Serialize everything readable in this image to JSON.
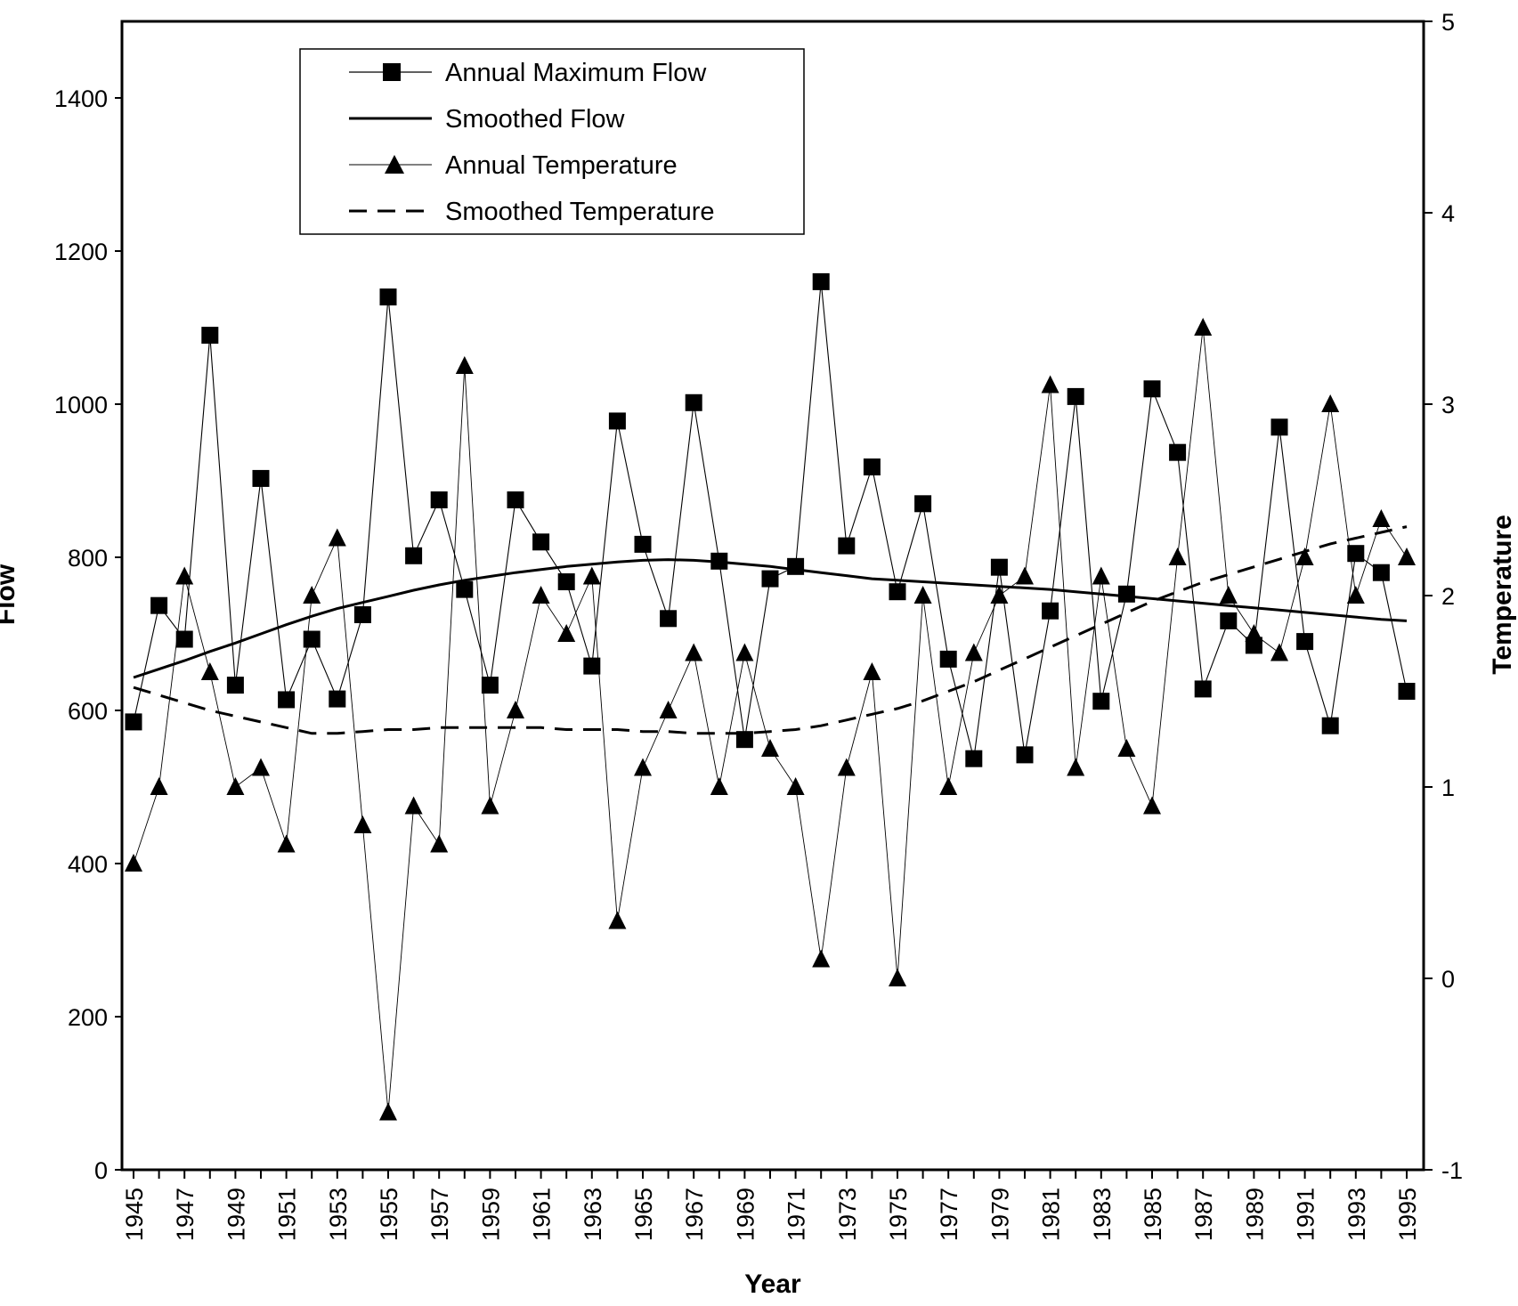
{
  "chart_data": {
    "type": "line",
    "title": "",
    "xlabel": "Year",
    "ylabel": "Flow",
    "y2label": "Temperature",
    "ylim": [
      0,
      1500
    ],
    "y2lim": [
      -1,
      5
    ],
    "yticks": [
      0,
      200,
      400,
      600,
      800,
      1000,
      1200,
      1400
    ],
    "y2ticks": [
      -1,
      0,
      1,
      2,
      3,
      4,
      5
    ],
    "xticks": [
      "1945",
      "1947",
      "1949",
      "1951",
      "1953",
      "1955",
      "1957",
      "1959",
      "1961",
      "1963",
      "1965",
      "1967",
      "1969",
      "1971",
      "1973",
      "1975",
      "1977",
      "1979",
      "1981",
      "1983",
      "1985",
      "1987",
      "1989",
      "1991",
      "1993",
      "1995"
    ],
    "grid": false,
    "legend_position": "top-left",
    "x": [
      1945,
      1946,
      1947,
      1948,
      1949,
      1950,
      1951,
      1952,
      1953,
      1954,
      1955,
      1956,
      1957,
      1958,
      1959,
      1960,
      1961,
      1962,
      1963,
      1964,
      1965,
      1966,
      1967,
      1968,
      1969,
      1970,
      1971,
      1972,
      1973,
      1974,
      1975,
      1976,
      1977,
      1978,
      1979,
      1980,
      1981,
      1982,
      1983,
      1984,
      1985,
      1986,
      1987,
      1988,
      1989,
      1990,
      1991,
      1992,
      1993,
      1994,
      1995
    ],
    "series": [
      {
        "name": "Annual Maximum Flow",
        "axis": "left",
        "style": "line-square",
        "values": [
          585,
          737,
          693,
          1090,
          633,
          903,
          614,
          693,
          615,
          725,
          1140,
          802,
          875,
          758,
          633,
          875,
          820,
          768,
          658,
          978,
          817,
          720,
          1002,
          795,
          562,
          772,
          788,
          1160,
          815,
          918,
          755,
          870,
          667,
          537,
          787,
          542,
          730,
          1010,
          612,
          752,
          1020,
          937,
          628,
          717,
          685,
          970,
          690,
          580,
          805,
          780,
          625
        ]
      },
      {
        "name": "Smoothed Flow",
        "axis": "left",
        "style": "solid",
        "values": [
          643,
          654,
          665,
          677,
          688,
          700,
          712,
          723,
          733,
          741,
          749,
          757,
          764,
          770,
          775,
          780,
          784,
          788,
          791,
          794,
          796,
          797,
          796,
          794,
          791,
          788,
          784,
          780,
          776,
          772,
          770,
          768,
          766,
          764,
          762,
          760,
          758,
          755,
          752,
          749,
          746,
          743,
          740,
          737,
          734,
          731,
          728,
          725,
          722,
          719,
          717
        ]
      },
      {
        "name": "Annual Temperature",
        "axis": "right",
        "style": "line-triangle",
        "values": [
          0.6,
          1.0,
          2.1,
          1.6,
          1.0,
          1.1,
          0.7,
          2.0,
          2.3,
          0.8,
          -0.7,
          0.9,
          0.7,
          3.2,
          0.9,
          1.4,
          2.0,
          1.8,
          2.1,
          0.3,
          1.1,
          1.4,
          1.7,
          1.0,
          1.7,
          1.2,
          1.0,
          0.1,
          1.1,
          1.6,
          0.0,
          2.0,
          1.0,
          1.7,
          2.0,
          2.1,
          3.1,
          1.1,
          2.1,
          1.2,
          0.9,
          2.2,
          3.4,
          2.0,
          1.8,
          1.7,
          2.2,
          3.0,
          2.0,
          2.4,
          2.2
        ]
      },
      {
        "name": "Smoothed Temperature",
        "axis": "right",
        "style": "dashed",
        "values": [
          1.52,
          1.48,
          1.44,
          1.4,
          1.37,
          1.34,
          1.31,
          1.28,
          1.28,
          1.29,
          1.3,
          1.3,
          1.31,
          1.31,
          1.31,
          1.31,
          1.31,
          1.3,
          1.3,
          1.3,
          1.29,
          1.29,
          1.28,
          1.28,
          1.28,
          1.29,
          1.3,
          1.32,
          1.35,
          1.38,
          1.41,
          1.45,
          1.5,
          1.55,
          1.61,
          1.67,
          1.73,
          1.79,
          1.85,
          1.91,
          1.97,
          2.02,
          2.07,
          2.11,
          2.15,
          2.19,
          2.23,
          2.27,
          2.3,
          2.33,
          2.36
        ]
      }
    ]
  }
}
